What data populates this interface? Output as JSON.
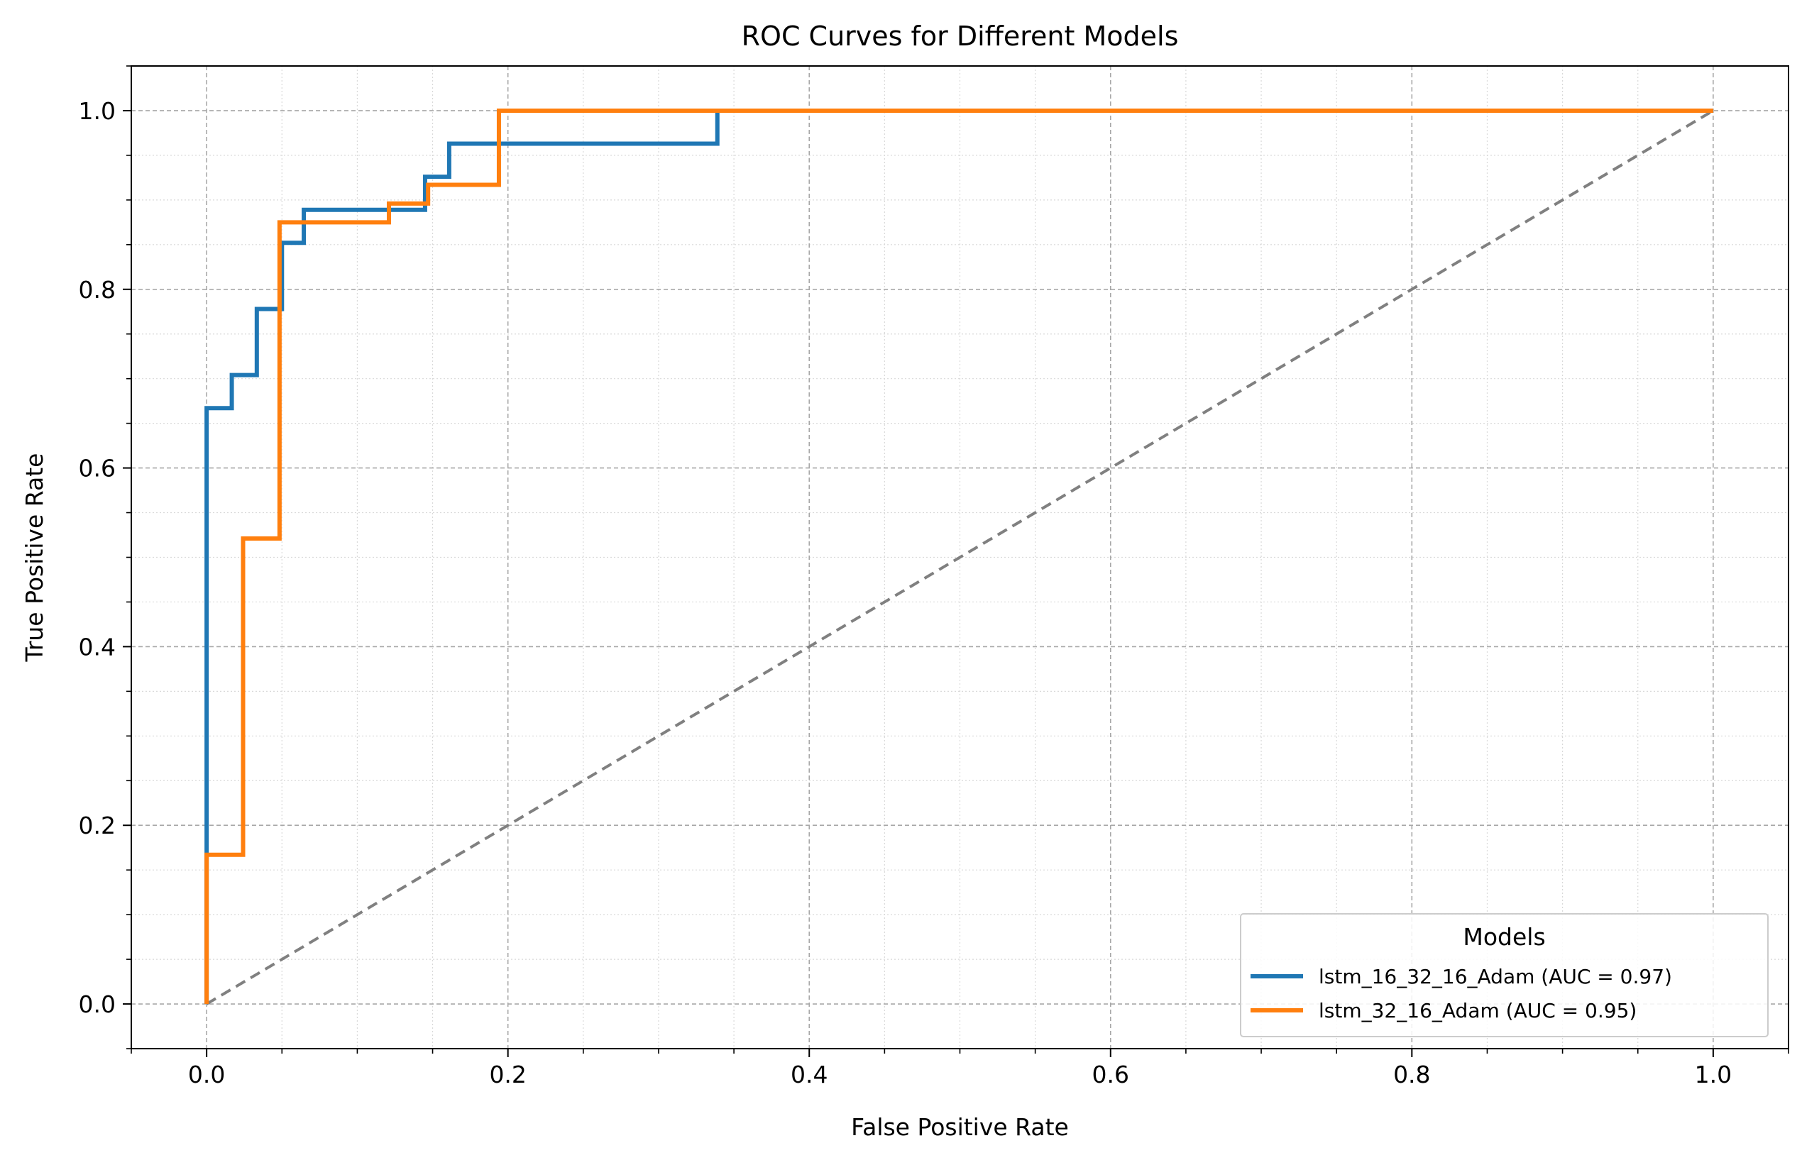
{
  "chart_data": {
    "type": "line",
    "title": "ROC Curves for Different Models",
    "xlabel": "False Positive Rate",
    "ylabel": "True Positive Rate",
    "xlim": [
      -0.05,
      1.05
    ],
    "ylim": [
      -0.05,
      1.05
    ],
    "x_ticks": [
      0.0,
      0.2,
      0.4,
      0.6,
      0.8,
      1.0
    ],
    "y_ticks": [
      0.0,
      0.2,
      0.4,
      0.6,
      0.8,
      1.0
    ],
    "x_tick_labels": [
      "0.0",
      "0.2",
      "0.4",
      "0.6",
      "0.8",
      "1.0"
    ],
    "y_tick_labels": [
      "0.0",
      "0.2",
      "0.4",
      "0.6",
      "0.8",
      "1.0"
    ],
    "x_minor_ticks": [
      -0.05,
      0.05,
      0.1,
      0.15,
      0.25,
      0.3,
      0.35,
      0.45,
      0.5,
      0.55,
      0.65,
      0.7,
      0.75,
      0.85,
      0.9,
      0.95,
      1.05
    ],
    "y_minor_ticks": [
      -0.05,
      0.05,
      0.1,
      0.15,
      0.25,
      0.3,
      0.35,
      0.45,
      0.5,
      0.55,
      0.65,
      0.7,
      0.75,
      0.85,
      0.9,
      0.95,
      1.05
    ],
    "grid": true,
    "legend": {
      "title": "Models",
      "location": "lower-right"
    },
    "series": [
      {
        "name": "lstm_16_32_16_Adam (AUC = 0.97)",
        "color": "#1f77b4",
        "x": [
          0.0,
          0.0,
          0.0,
          0.0167,
          0.0167,
          0.0333,
          0.0333,
          0.05,
          0.05,
          0.0645,
          0.0645,
          0.145,
          0.145,
          0.161,
          0.161,
          0.339,
          0.339,
          1.0
        ],
        "y": [
          0.0,
          0.167,
          0.667,
          0.667,
          0.704,
          0.704,
          0.778,
          0.778,
          0.852,
          0.852,
          0.889,
          0.889,
          0.926,
          0.926,
          0.963,
          0.963,
          1.0,
          1.0
        ]
      },
      {
        "name": "lstm_32_16_Adam (AUC = 0.95)",
        "color": "#ff7f0e",
        "x": [
          0.0,
          0.0,
          0.0242,
          0.0242,
          0.0484,
          0.0484,
          0.0484,
          0.121,
          0.121,
          0.147,
          0.147,
          0.194,
          0.194,
          1.0
        ],
        "y": [
          0.0,
          0.167,
          0.167,
          0.521,
          0.521,
          0.854,
          0.875,
          0.875,
          0.896,
          0.896,
          0.917,
          0.917,
          1.0,
          1.0
        ]
      }
    ],
    "reference_line": {
      "style": "dashed",
      "color": "#808080",
      "x": [
        0.0,
        1.0
      ],
      "y": [
        0.0,
        1.0
      ]
    }
  }
}
